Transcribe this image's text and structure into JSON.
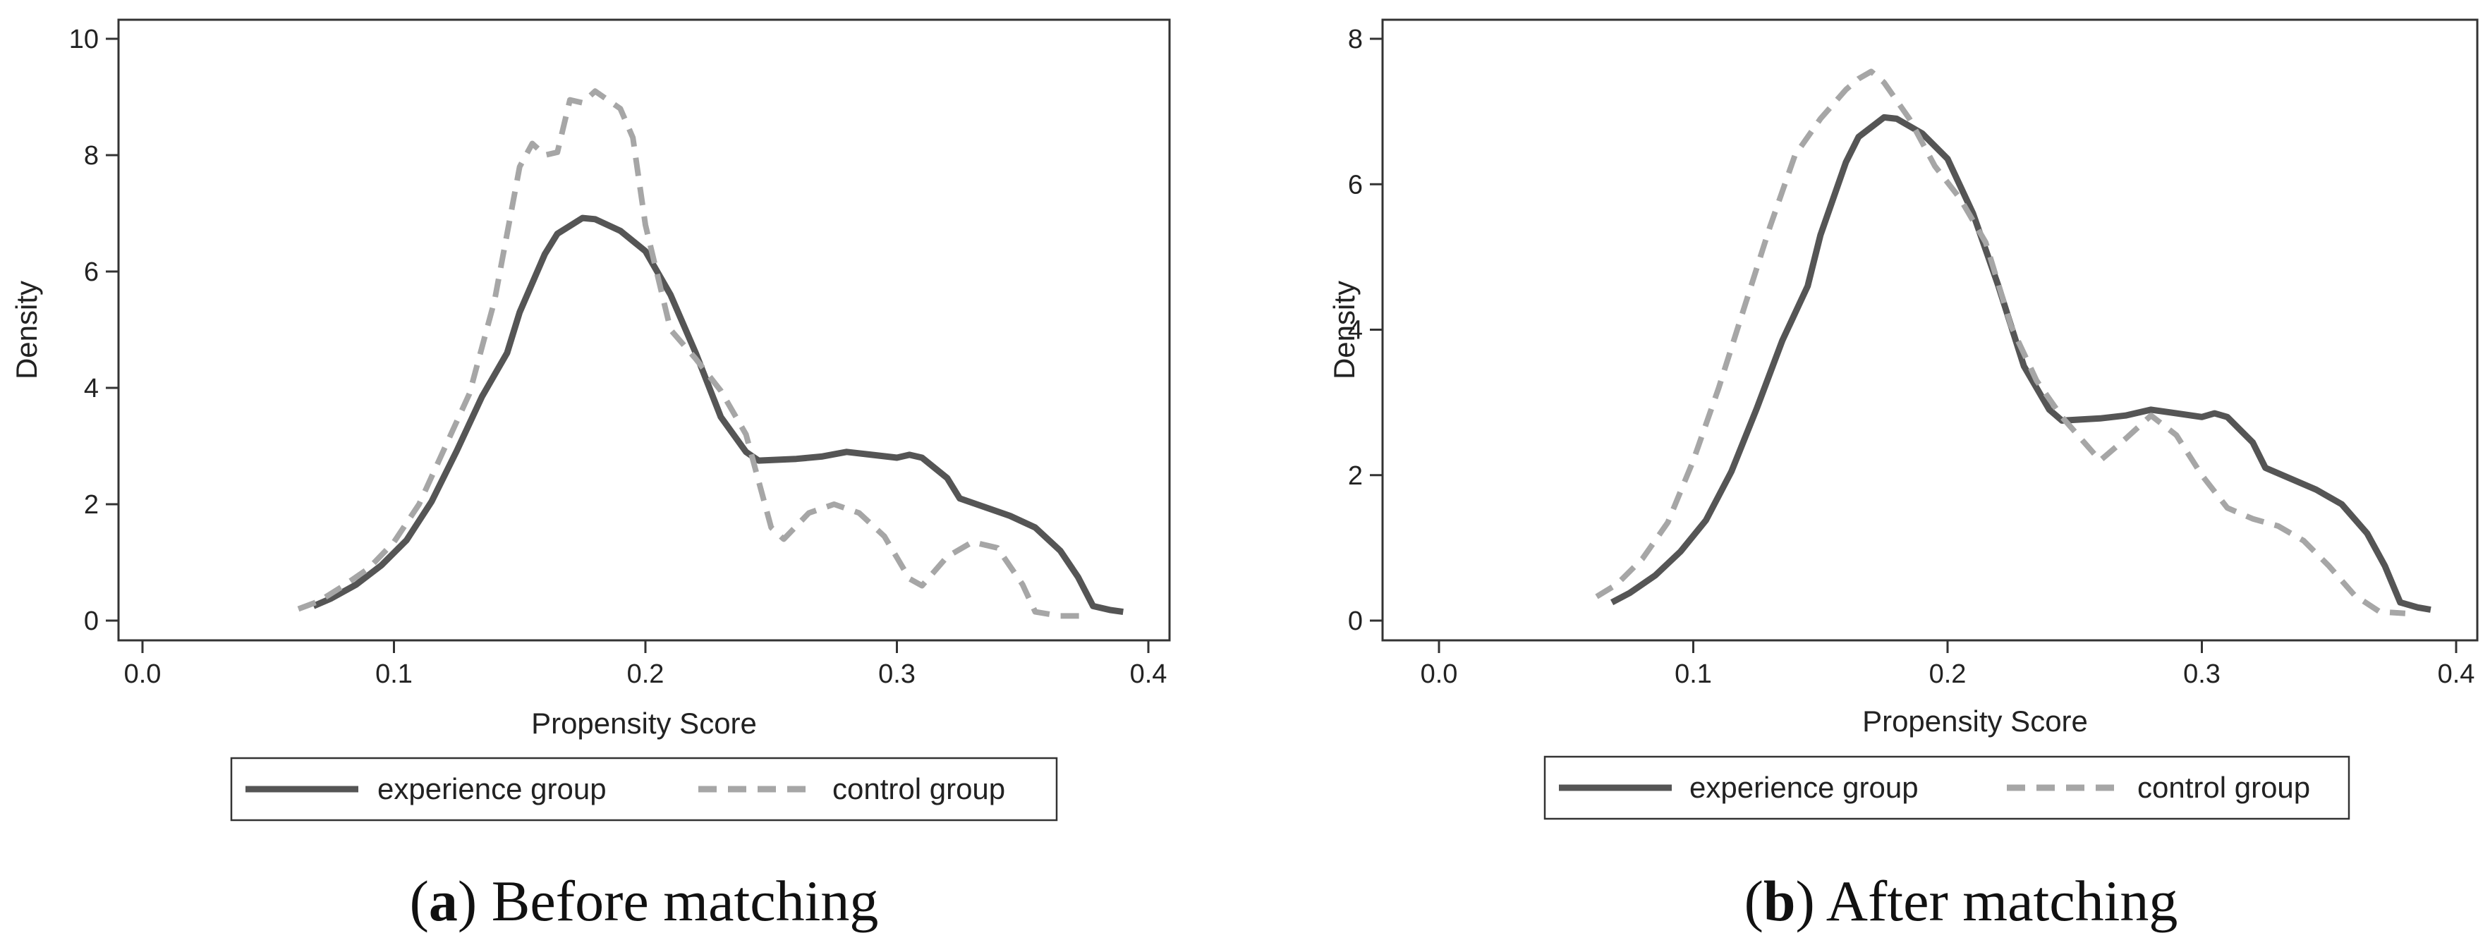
{
  "chart_data": [
    {
      "type": "line",
      "panel": "a",
      "caption": {
        "open": "(",
        "letter": "a",
        "close": ")",
        "text": " Before matching"
      },
      "xlabel": "Propensity Score",
      "ylabel": "Density",
      "xlim": [
        0,
        0.4
      ],
      "ylim": [
        0,
        10
      ],
      "xticks": [
        0.0,
        0.1,
        0.2,
        0.3,
        0.4
      ],
      "xtick_labels": [
        "0.0",
        "0.1",
        "0.2",
        "0.3",
        "0.4"
      ],
      "yticks": [
        0,
        2,
        4,
        6,
        8,
        10
      ],
      "ytick_labels": [
        "0",
        "2",
        "4",
        "6",
        "8",
        "10"
      ],
      "grid": false,
      "legend_position": "bottom",
      "series": [
        {
          "name": "experience group",
          "style": "solid",
          "color": "#555555",
          "points": [
            [
              0.068,
              0.25
            ],
            [
              0.075,
              0.38
            ],
            [
              0.085,
              0.62
            ],
            [
              0.095,
              0.95
            ],
            [
              0.105,
              1.38
            ],
            [
              0.115,
              2.05
            ],
            [
              0.125,
              2.92
            ],
            [
              0.135,
              3.85
            ],
            [
              0.145,
              4.6
            ],
            [
              0.15,
              5.3
            ],
            [
              0.16,
              6.3
            ],
            [
              0.165,
              6.65
            ],
            [
              0.175,
              6.92
            ],
            [
              0.18,
              6.9
            ],
            [
              0.19,
              6.7
            ],
            [
              0.2,
              6.35
            ],
            [
              0.21,
              5.6
            ],
            [
              0.22,
              4.6
            ],
            [
              0.23,
              3.5
            ],
            [
              0.24,
              2.9
            ],
            [
              0.245,
              2.75
            ],
            [
              0.26,
              2.78
            ],
            [
              0.27,
              2.82
            ],
            [
              0.28,
              2.9
            ],
            [
              0.29,
              2.85
            ],
            [
              0.3,
              2.8
            ],
            [
              0.305,
              2.85
            ],
            [
              0.31,
              2.8
            ],
            [
              0.32,
              2.45
            ],
            [
              0.325,
              2.1
            ],
            [
              0.335,
              1.95
            ],
            [
              0.345,
              1.8
            ],
            [
              0.355,
              1.6
            ],
            [
              0.365,
              1.2
            ],
            [
              0.372,
              0.75
            ],
            [
              0.378,
              0.25
            ],
            [
              0.385,
              0.18
            ],
            [
              0.39,
              0.15
            ]
          ]
        },
        {
          "name": "control group",
          "style": "dashed",
          "color": "#a6a6a6",
          "points": [
            [
              0.062,
              0.2
            ],
            [
              0.07,
              0.33
            ],
            [
              0.08,
              0.6
            ],
            [
              0.09,
              0.9
            ],
            [
              0.1,
              1.35
            ],
            [
              0.11,
              2.0
            ],
            [
              0.12,
              2.95
            ],
            [
              0.13,
              3.9
            ],
            [
              0.14,
              5.5
            ],
            [
              0.15,
              7.8
            ],
            [
              0.155,
              8.2
            ],
            [
              0.16,
              8.0
            ],
            [
              0.165,
              8.05
            ],
            [
              0.17,
              8.95
            ],
            [
              0.175,
              8.9
            ],
            [
              0.18,
              9.1
            ],
            [
              0.185,
              8.95
            ],
            [
              0.19,
              8.8
            ],
            [
              0.195,
              8.3
            ],
            [
              0.2,
              6.8
            ],
            [
              0.21,
              5.0
            ],
            [
              0.22,
              4.5
            ],
            [
              0.23,
              3.95
            ],
            [
              0.24,
              3.2
            ],
            [
              0.25,
              1.6
            ],
            [
              0.255,
              1.4
            ],
            [
              0.265,
              1.85
            ],
            [
              0.275,
              2.0
            ],
            [
              0.285,
              1.85
            ],
            [
              0.295,
              1.45
            ],
            [
              0.305,
              0.72
            ],
            [
              0.31,
              0.6
            ],
            [
              0.32,
              1.1
            ],
            [
              0.33,
              1.35
            ],
            [
              0.34,
              1.25
            ],
            [
              0.35,
              0.62
            ],
            [
              0.355,
              0.15
            ],
            [
              0.365,
              0.08
            ],
            [
              0.375,
              0.08
            ]
          ]
        }
      ],
      "legend": [
        "experience group",
        "control group"
      ]
    },
    {
      "type": "line",
      "panel": "b",
      "caption": {
        "open": "(",
        "letter": "b",
        "close": ")",
        "text": " After matching"
      },
      "xlabel": "Propensity Score",
      "ylabel": "Density",
      "xlim": [
        0,
        0.4
      ],
      "ylim": [
        0,
        8
      ],
      "xticks": [
        0.0,
        0.1,
        0.2,
        0.3,
        0.4
      ],
      "xtick_labels": [
        "0.0",
        "0.1",
        "0.2",
        "0.3",
        "0.4"
      ],
      "yticks": [
        0,
        2,
        4,
        6,
        8
      ],
      "ytick_labels": [
        "0",
        "2",
        "4",
        "6",
        "8"
      ],
      "grid": false,
      "legend_position": "bottom",
      "series": [
        {
          "name": "experience group",
          "style": "solid",
          "color": "#555555",
          "points": [
            [
              0.068,
              0.25
            ],
            [
              0.075,
              0.38
            ],
            [
              0.085,
              0.62
            ],
            [
              0.095,
              0.95
            ],
            [
              0.105,
              1.38
            ],
            [
              0.115,
              2.05
            ],
            [
              0.125,
              2.92
            ],
            [
              0.135,
              3.85
            ],
            [
              0.145,
              4.6
            ],
            [
              0.15,
              5.3
            ],
            [
              0.16,
              6.3
            ],
            [
              0.165,
              6.65
            ],
            [
              0.175,
              6.92
            ],
            [
              0.18,
              6.9
            ],
            [
              0.19,
              6.7
            ],
            [
              0.2,
              6.35
            ],
            [
              0.21,
              5.6
            ],
            [
              0.22,
              4.6
            ],
            [
              0.23,
              3.5
            ],
            [
              0.24,
              2.9
            ],
            [
              0.245,
              2.75
            ],
            [
              0.26,
              2.78
            ],
            [
              0.27,
              2.82
            ],
            [
              0.28,
              2.9
            ],
            [
              0.29,
              2.85
            ],
            [
              0.3,
              2.8
            ],
            [
              0.305,
              2.85
            ],
            [
              0.31,
              2.8
            ],
            [
              0.32,
              2.45
            ],
            [
              0.325,
              2.1
            ],
            [
              0.335,
              1.95
            ],
            [
              0.345,
              1.8
            ],
            [
              0.355,
              1.6
            ],
            [
              0.365,
              1.2
            ],
            [
              0.372,
              0.75
            ],
            [
              0.378,
              0.25
            ],
            [
              0.385,
              0.18
            ],
            [
              0.39,
              0.15
            ]
          ]
        },
        {
          "name": "control group",
          "style": "dashed",
          "color": "#a6a6a6",
          "points": [
            [
              0.062,
              0.33
            ],
            [
              0.07,
              0.5
            ],
            [
              0.08,
              0.85
            ],
            [
              0.09,
              1.35
            ],
            [
              0.1,
              2.2
            ],
            [
              0.11,
              3.2
            ],
            [
              0.12,
              4.3
            ],
            [
              0.13,
              5.4
            ],
            [
              0.14,
              6.4
            ],
            [
              0.15,
              6.9
            ],
            [
              0.16,
              7.3
            ],
            [
              0.165,
              7.45
            ],
            [
              0.17,
              7.55
            ],
            [
              0.175,
              7.4
            ],
            [
              0.185,
              6.9
            ],
            [
              0.195,
              6.25
            ],
            [
              0.205,
              5.8
            ],
            [
              0.215,
              5.2
            ],
            [
              0.225,
              4.05
            ],
            [
              0.235,
              3.3
            ],
            [
              0.245,
              2.8
            ],
            [
              0.26,
              2.2
            ],
            [
              0.27,
              2.5
            ],
            [
              0.28,
              2.82
            ],
            [
              0.29,
              2.55
            ],
            [
              0.3,
              2.0
            ],
            [
              0.31,
              1.55
            ],
            [
              0.32,
              1.4
            ],
            [
              0.33,
              1.3
            ],
            [
              0.34,
              1.1
            ],
            [
              0.35,
              0.75
            ],
            [
              0.36,
              0.35
            ],
            [
              0.37,
              0.12
            ],
            [
              0.38,
              0.1
            ]
          ]
        }
      ],
      "legend": [
        "experience group",
        "control group"
      ]
    }
  ]
}
